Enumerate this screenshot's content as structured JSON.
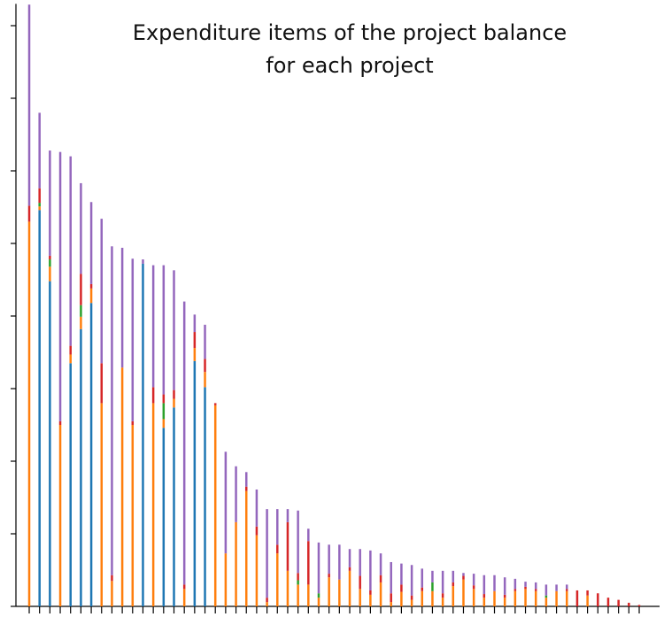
{
  "chart_data": {
    "type": "stacked_bar",
    "title": [
      "Expenditure items of the project balance",
      "for each project"
    ],
    "categories": [
      null,
      null,
      null,
      null,
      null,
      null,
      null,
      null,
      null,
      null,
      null,
      null,
      null,
      null,
      null,
      null,
      null,
      null,
      null,
      null,
      null,
      null,
      null,
      null,
      null,
      null,
      null,
      null,
      null,
      null,
      null,
      null,
      null,
      null,
      null,
      null,
      null,
      null,
      null,
      null,
      null,
      null,
      null,
      null,
      null,
      null,
      null,
      null,
      null,
      null,
      null,
      null,
      null,
      null,
      null,
      null,
      null,
      null,
      null,
      null
    ],
    "series": [
      {
        "color": "#1f77b4",
        "values": [
          0,
          5.46,
          4.48,
          0,
          3.35,
          3.82,
          4.18,
          0,
          0,
          0,
          0,
          4.72,
          0,
          2.46,
          2.74,
          0,
          3.38,
          3.02,
          0,
          0,
          0,
          0,
          0,
          0,
          0,
          0,
          0,
          0,
          0,
          0,
          0,
          0,
          0,
          0,
          0,
          0,
          0,
          0,
          0,
          0,
          0,
          0,
          0,
          0,
          0,
          0,
          0,
          0,
          0,
          0,
          0,
          0,
          0,
          0,
          0,
          0,
          0,
          0,
          0,
          0
        ]
      },
      {
        "color": "#ff7f0e",
        "values": [
          5.3,
          0.05,
          0.2,
          2.5,
          0.12,
          0.17,
          0.2,
          2.8,
          0.35,
          3.29,
          2.5,
          0,
          2.8,
          0.12,
          0.12,
          0.24,
          0.18,
          0.21,
          2.77,
          0.73,
          1.16,
          1.59,
          0.98,
          0.06,
          0.73,
          0.49,
          0.3,
          0.3,
          0.12,
          0.4,
          0.37,
          0.49,
          0.24,
          0.16,
          0.33,
          0.06,
          0.2,
          0.09,
          0.21,
          0.21,
          0.12,
          0.28,
          0.37,
          0.24,
          0.12,
          0.21,
          0.12,
          0.21,
          0.24,
          0.21,
          0.12,
          0.21,
          0.21,
          0,
          0.15,
          0,
          0,
          0,
          0,
          0
        ]
      },
      {
        "color": "#2ca02c",
        "values": [
          0,
          0.05,
          0.1,
          0,
          0,
          0.16,
          0,
          0,
          0,
          0,
          0,
          0,
          0,
          0.22,
          0,
          0,
          0,
          0,
          0,
          0,
          0,
          0,
          0,
          0,
          0,
          0,
          0.06,
          0,
          0.06,
          0,
          0,
          0,
          0,
          0,
          0,
          0,
          0,
          0,
          0,
          0.12,
          0,
          0,
          0,
          0,
          0,
          0,
          0,
          0,
          0,
          0,
          0.03,
          0,
          0,
          0,
          0,
          0,
          0,
          0,
          0,
          0
        ]
      },
      {
        "color": "#d62728",
        "values": [
          0.22,
          0.2,
          0.05,
          0.05,
          0.12,
          0.43,
          0.06,
          0.55,
          0.08,
          0,
          0.05,
          0,
          0.22,
          0.12,
          0.12,
          0.06,
          0.22,
          0.18,
          0.03,
          0,
          0,
          0.06,
          0.12,
          0.06,
          0.12,
          0.67,
          0.1,
          0.6,
          0,
          0.05,
          0,
          0.05,
          0.18,
          0.06,
          0.1,
          0.12,
          0.1,
          0.06,
          0.05,
          0,
          0.06,
          0.05,
          0.05,
          0.05,
          0.05,
          0,
          0.04,
          0.03,
          0.03,
          0.03,
          0,
          0,
          0.03,
          0.22,
          0.07,
          0.18,
          0.12,
          0.09,
          0.05,
          0.02
        ]
      },
      {
        "color": "#9467bd",
        "values": [
          2.77,
          1.04,
          1.45,
          3.71,
          2.61,
          1.25,
          1.13,
          1.99,
          4.53,
          1.65,
          2.24,
          0.06,
          1.68,
          1.78,
          1.65,
          3.9,
          0.24,
          0.47,
          0,
          1.4,
          0.77,
          0.2,
          0.51,
          1.22,
          0.49,
          0.18,
          0.86,
          0.17,
          0.7,
          0.4,
          0.48,
          0.25,
          0.37,
          0.55,
          0.3,
          0.43,
          0.29,
          0.42,
          0.26,
          0.16,
          0.31,
          0.16,
          0.04,
          0.16,
          0.26,
          0.22,
          0.24,
          0.14,
          0.07,
          0.09,
          0.15,
          0.09,
          0.06,
          0,
          0,
          0,
          0,
          0,
          0,
          0
        ]
      }
    ],
    "ylim": [
      0,
      8.3
    ],
    "yticks": [
      0,
      1,
      2,
      3,
      4,
      5,
      6,
      7,
      8
    ]
  }
}
